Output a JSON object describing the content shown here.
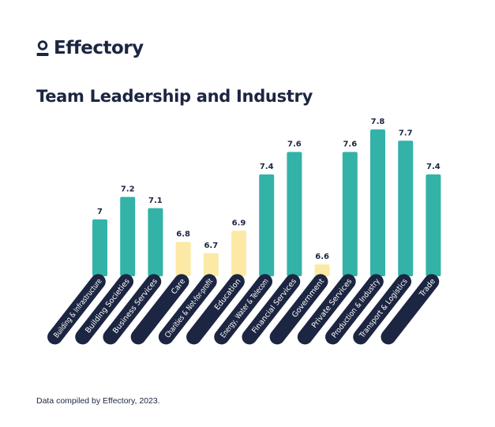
{
  "brand": {
    "name": "Effectory",
    "logo_icon": "person-icon",
    "color": "#1c2541"
  },
  "colors": {
    "above": "#33b2a8",
    "below": "#fde9a6",
    "pill": "#1c2541"
  },
  "chart_data": {
    "type": "bar",
    "title": "Team Leadership and Industry",
    "xlabel": "",
    "ylabel": "",
    "grid": false,
    "legend": "none",
    "categories": [
      "Building & Infrastructure",
      "Building Societies",
      "Business Services",
      "Care",
      "Charities & Not-for-profit",
      "Education",
      "Energy, Water & Telecom",
      "Financial Services",
      "Government",
      "Private Services",
      "Production & Industry",
      "Transport & Logistics",
      "Trade"
    ],
    "values": [
      7,
      7.2,
      7.1,
      6.8,
      6.7,
      6.9,
      7.4,
      7.6,
      6.6,
      7.6,
      7.8,
      7.7,
      7.4
    ],
    "value_labels": [
      "7",
      "7.2",
      "7.1",
      "6.8",
      "6.7",
      "6.9",
      "7.4",
      "7.6",
      "6.6",
      "7.6",
      "7.8",
      "7.7",
      "7.4"
    ],
    "bar_colors": [
      "teal",
      "teal",
      "teal",
      "yellow",
      "yellow",
      "yellow",
      "teal",
      "teal",
      "yellow",
      "teal",
      "teal",
      "teal",
      "teal"
    ]
  },
  "footer": "Data compiled by Effectory, 2023."
}
